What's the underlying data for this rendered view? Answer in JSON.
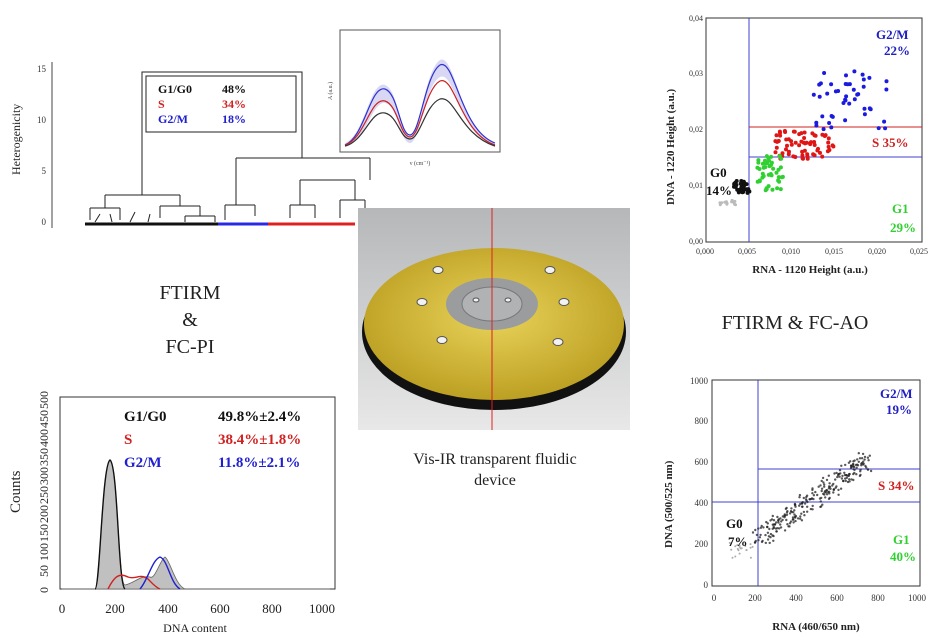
{
  "dendrogram": {
    "ylabel": "Heterogenicity",
    "yticks": [
      "0",
      "5",
      "10",
      "15"
    ],
    "legend": [
      {
        "phase": "G1/G0",
        "value": "48%",
        "color": "#111111"
      },
      {
        "phase": "S",
        "value": "34%",
        "color": "#d02020"
      },
      {
        "phase": "G2/M",
        "value": "18%",
        "color": "#2020d0"
      }
    ]
  },
  "spectrum_inset": {
    "xlabel": "ν (cm⁻¹)",
    "ylabel": "A (a.u.)",
    "series_colors": [
      "#333333",
      "#d02020",
      "#3030d0"
    ]
  },
  "ftirm_pi_label": [
    "FTIRM",
    "&",
    "FC-PI"
  ],
  "ftirm_ao_label": "FTIRM & FC-AO",
  "device_label": [
    "Vis-IR transparent fluidic",
    "device"
  ],
  "scatter_top": {
    "xlabel": "RNA - 1120 Height (a.u.)",
    "ylabel": "DNA - 1220 Height (a.u.)",
    "xticks": [
      "0,000",
      "0,005",
      "0,010",
      "0,015",
      "0,020",
      "0,025"
    ],
    "yticks": [
      "0,00",
      "0,01",
      "0,02",
      "0,03",
      "0,04"
    ],
    "gates": [
      {
        "label": "G2/M",
        "value": "22%",
        "color": "#2020c0"
      },
      {
        "label": "S 35%",
        "color": "#d02020"
      },
      {
        "label": "G0",
        "value": "14%",
        "color": "#111111"
      },
      {
        "label": "G1",
        "value": "29%",
        "color": "#30d030"
      }
    ]
  },
  "histogram": {
    "xlabel": "DNA content",
    "ylabel": "Counts",
    "xticks": [
      "0",
      "200",
      "400",
      "600",
      "800",
      "1000"
    ],
    "yticks": [
      "0",
      "50",
      "100",
      "150",
      "200",
      "250",
      "300",
      "350",
      "400",
      "450",
      "500"
    ],
    "legend": [
      {
        "phase": "G1/G0",
        "value": "49.8%±2.4%",
        "color": "#111111"
      },
      {
        "phase": "S",
        "value": "38.4%±1.8%",
        "color": "#d02020"
      },
      {
        "phase": "G2/M",
        "value": "11.8%±2.1%",
        "color": "#2020d0"
      }
    ]
  },
  "scatter_bottom": {
    "xlabel": "RNA (460/650 nm)",
    "ylabel": "DNA (500/525 nm)",
    "xticks": [
      "0",
      "200",
      "400",
      "600",
      "800",
      "1000"
    ],
    "yticks": [
      "0",
      "200",
      "400",
      "600",
      "800",
      "1000"
    ],
    "gates": [
      {
        "label": "G2/M",
        "value": "19%",
        "color": "#2020c0"
      },
      {
        "label": "S 34%",
        "color": "#d02020"
      },
      {
        "label": "G0",
        "value": "7%",
        "color": "#111111"
      },
      {
        "label": "G1",
        "value": "40%",
        "color": "#30d030"
      }
    ]
  }
}
